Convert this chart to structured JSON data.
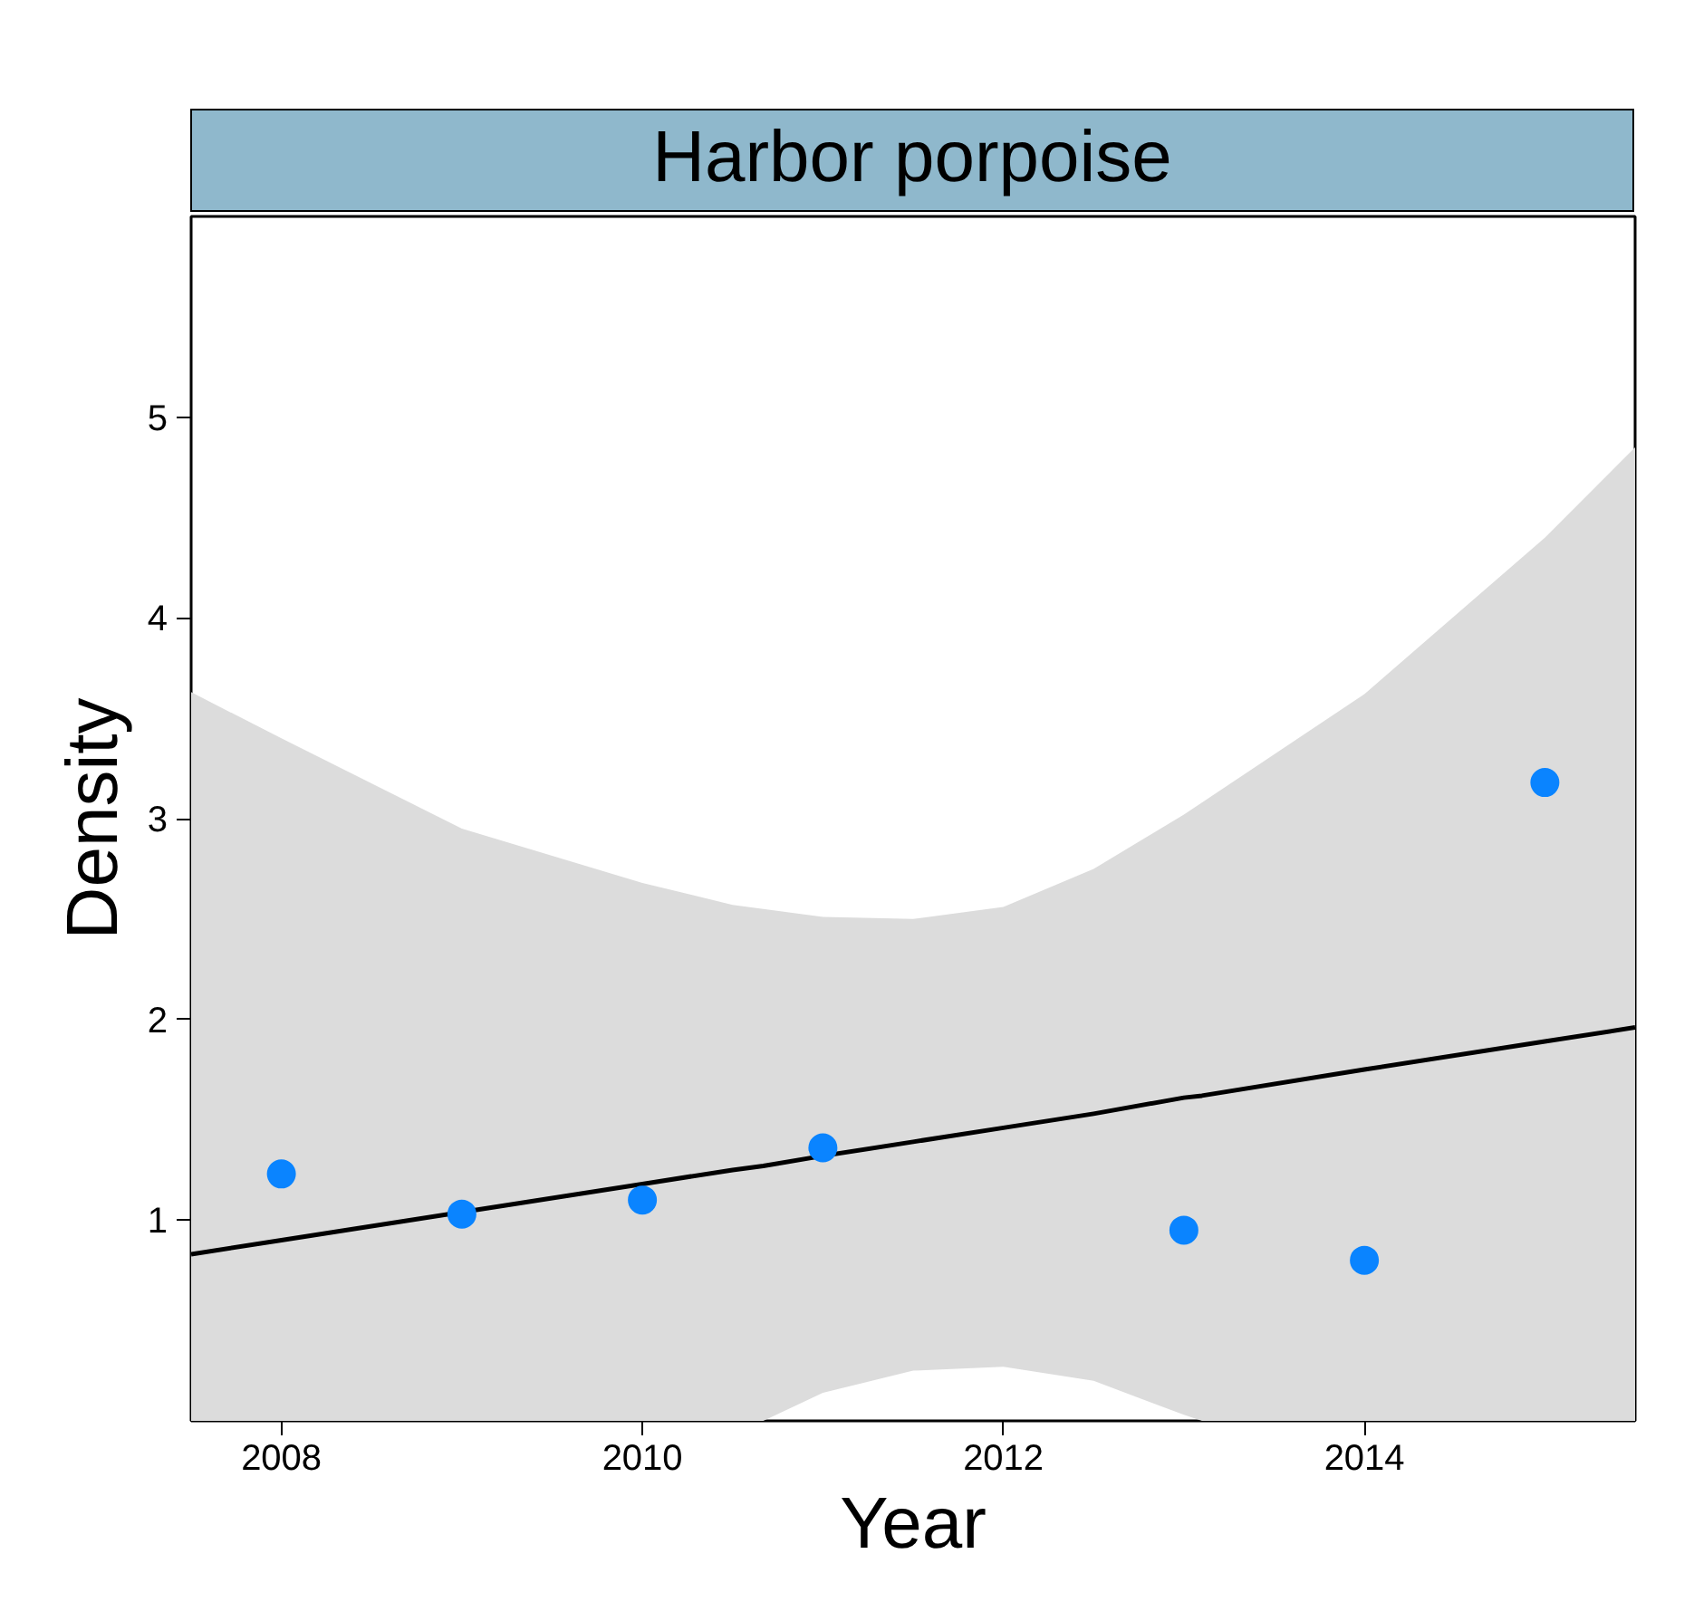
{
  "chart_data": {
    "type": "scatter",
    "title": "Harbor porpoise",
    "xlabel": "Year",
    "ylabel": "Density",
    "xlim": [
      2007.5,
      2015.5
    ],
    "ylim": [
      0,
      6
    ],
    "xticks": [
      2008,
      2010,
      2012,
      2014
    ],
    "yticks": [
      1,
      2,
      3,
      4,
      5
    ],
    "grid": false,
    "marker": "circle",
    "series": [
      {
        "color": "#0a84ff",
        "x": [
          2008,
          2009,
          2010,
          2011,
          2013,
          2014,
          2015
        ],
        "values": [
          1.23,
          1.03,
          1.1,
          1.36,
          0.95,
          0.8,
          3.18
        ]
      },
      {
        "type": "line",
        "marker": "none",
        "color": "#000000",
        "line_style": "solid",
        "x": [
          2007.5,
          2008,
          2009,
          2010,
          2010.5,
          2010.67,
          2011,
          2011.5,
          2012,
          2012.5,
          2013,
          2013.1,
          2014,
          2015,
          2015.5
        ],
        "values": [
          0.83,
          0.9,
          1.04,
          1.18,
          1.25,
          1.27,
          1.32,
          1.39,
          1.46,
          1.53,
          1.61,
          1.62,
          1.75,
          1.89,
          1.96
        ],
        "lower": [
          0,
          0,
          0,
          0,
          0,
          0.0,
          0.14,
          0.25,
          0.27,
          0.2,
          0.03,
          0.0,
          0,
          0,
          0
        ],
        "upper": [
          3.63,
          3.4,
          2.95,
          2.68,
          2.57,
          2.55,
          2.51,
          2.5,
          2.56,
          2.75,
          3.02,
          3.08,
          3.62,
          4.4,
          4.85
        ]
      }
    ]
  }
}
